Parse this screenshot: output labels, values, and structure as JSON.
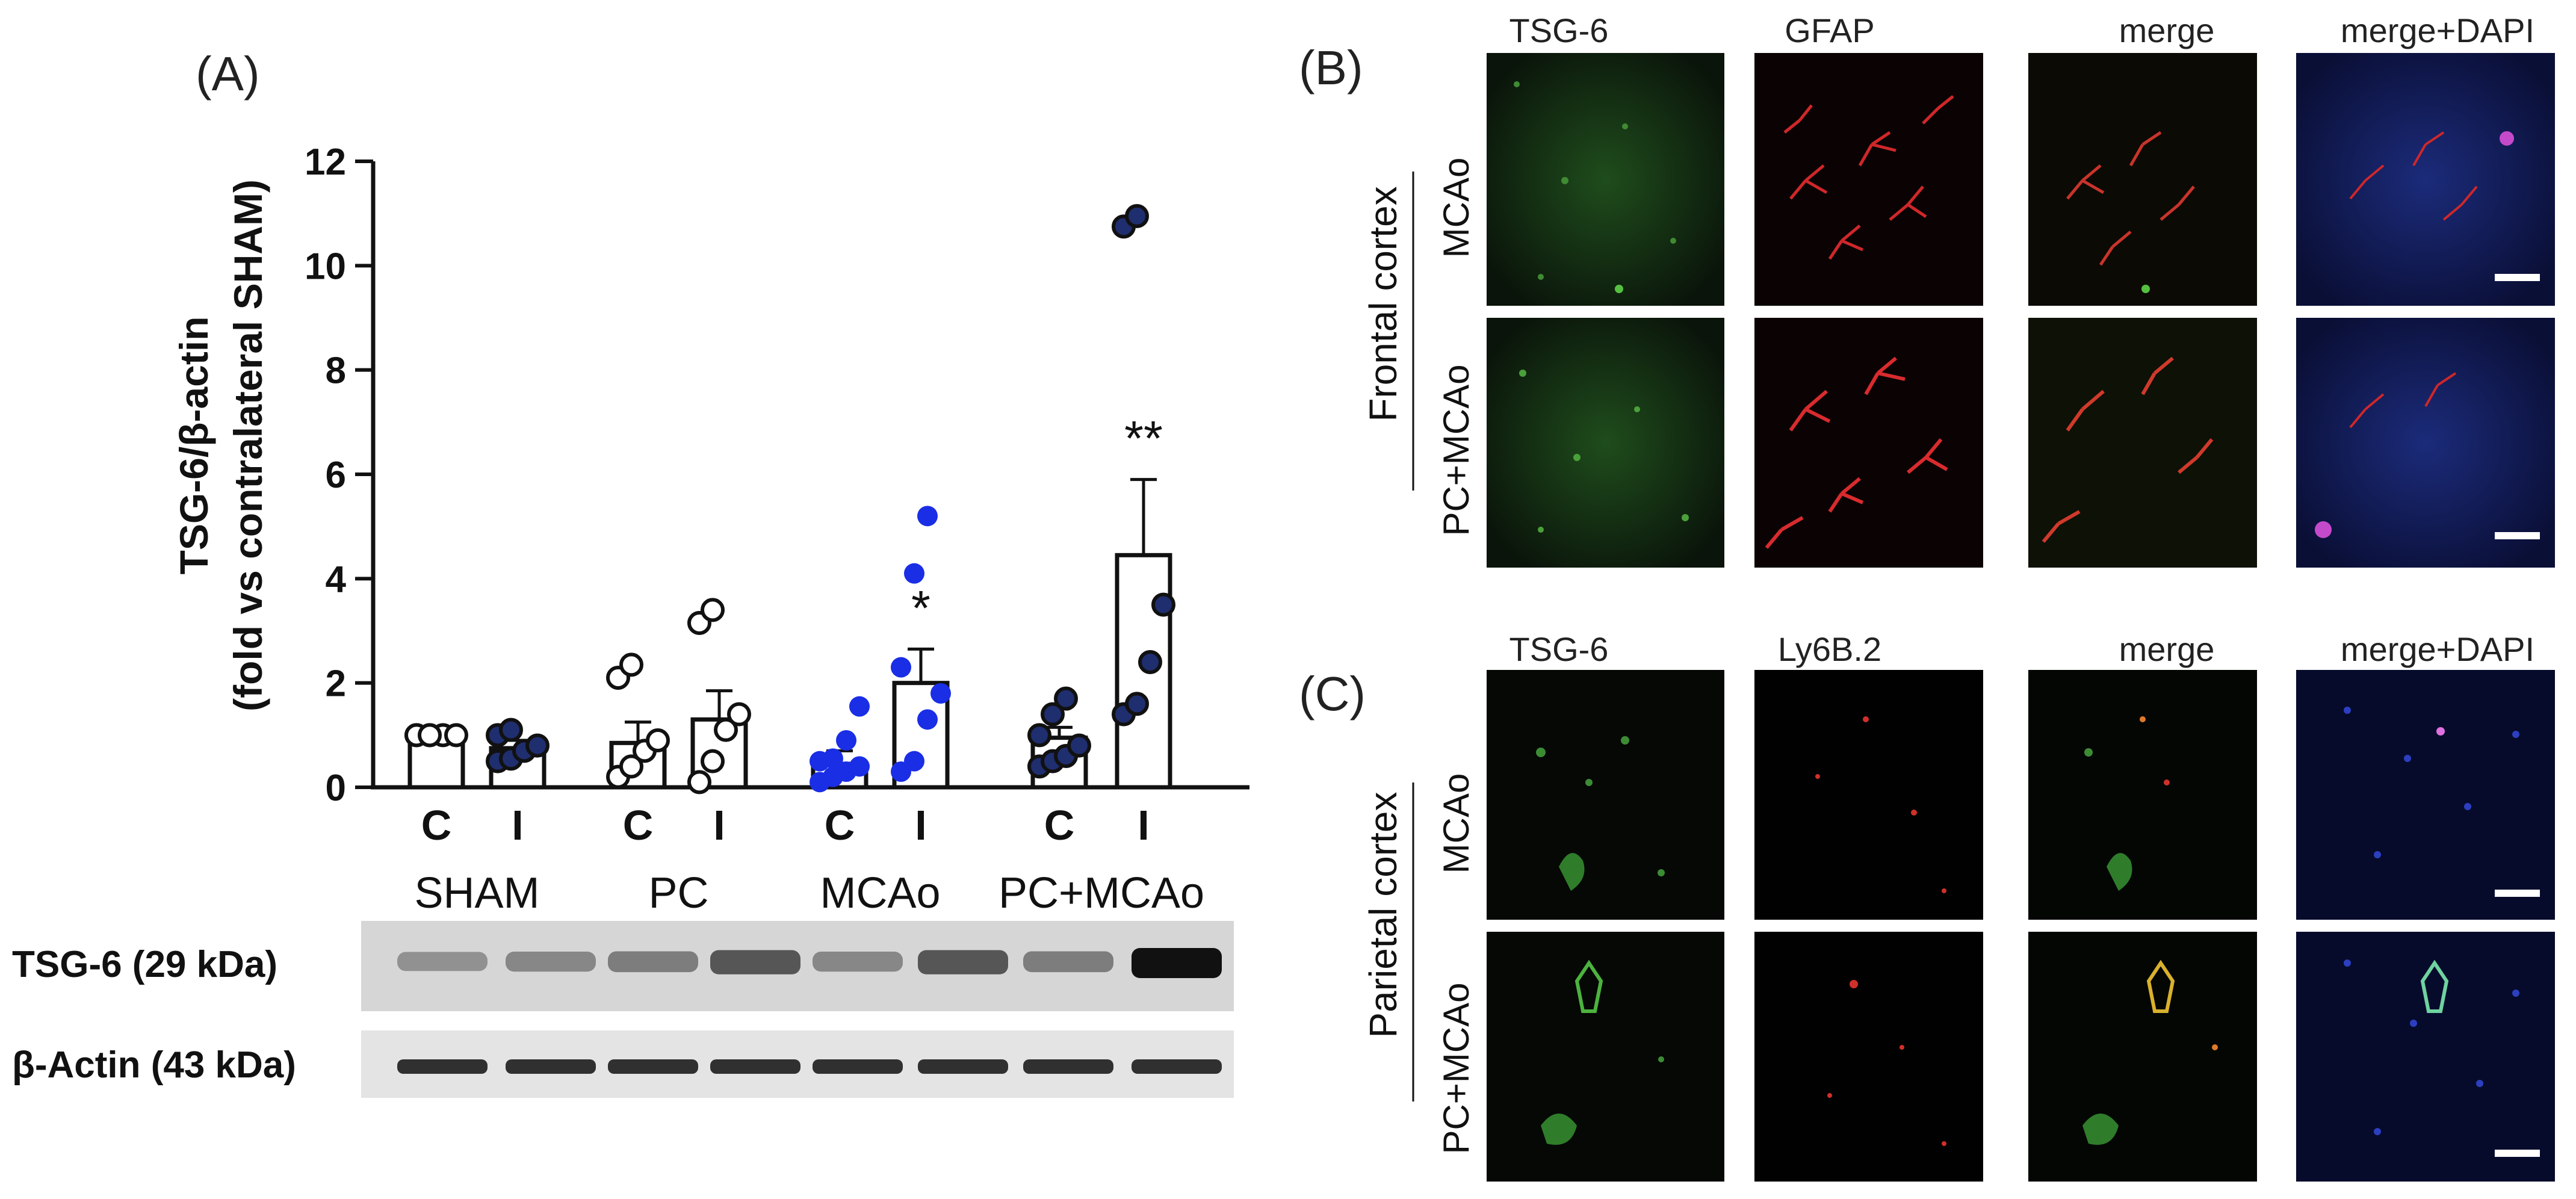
{
  "panels": {
    "a": "(A)",
    "b": "(B)",
    "c": "(C)"
  },
  "chart_data": {
    "type": "bar",
    "ylabel_line1": "TSG-6/β-actin",
    "ylabel_line2": "(fold vs contralateral SHAM)",
    "ylim": [
      0,
      12
    ],
    "yticks": [
      "0",
      "2",
      "4",
      "6",
      "8",
      "10",
      "12"
    ],
    "groups": [
      "SHAM",
      "PC",
      "MCAo",
      "PC+MCAo"
    ],
    "categories": [
      "C",
      "I",
      "C",
      "I",
      "C",
      "I",
      "C",
      "I"
    ],
    "values": [
      1.0,
      0.75,
      0.85,
      1.3,
      0.45,
      2.0,
      0.95,
      4.45
    ],
    "sem": [
      0.0,
      0.15,
      0.4,
      0.55,
      0.25,
      0.65,
      0.2,
      1.45
    ],
    "points": [
      [
        1.0,
        1.0,
        1.0,
        1.0,
        1.0,
        1.0
      ],
      [
        0.5,
        0.55,
        0.7,
        0.8,
        1.0,
        1.1
      ],
      [
        0.2,
        0.4,
        0.7,
        0.9,
        2.1,
        2.35
      ],
      [
        0.1,
        0.5,
        1.1,
        1.4,
        3.15,
        3.4
      ],
      [
        0.1,
        0.2,
        0.3,
        0.4,
        0.5,
        0.55,
        0.9,
        1.55
      ],
      [
        0.3,
        0.5,
        1.3,
        1.8,
        2.3,
        4.1,
        5.2
      ],
      [
        0.4,
        0.5,
        0.6,
        0.8,
        1.0,
        1.4,
        1.7
      ],
      [
        1.4,
        1.6,
        2.4,
        3.5,
        10.75,
        10.95
      ]
    ],
    "annotations": [
      "",
      "",
      "",
      "",
      "",
      "*",
      "",
      "**"
    ],
    "colors": {
      "white": "#ffffff",
      "blue": "#1a2ee6",
      "dark_navy": "#1f2e6e"
    }
  },
  "blot": {
    "rows": [
      {
        "label": "TSG-6 (29 kDa)"
      },
      {
        "label": "β-Actin (43 kDa)"
      }
    ]
  },
  "micro_b": {
    "columns": [
      "TSG-6",
      "GFAP",
      "merge",
      "merge+DAPI"
    ],
    "region": "Frontal cortex",
    "rows": [
      "MCAo",
      "PC+MCAo"
    ]
  },
  "micro_c": {
    "columns": [
      "TSG-6",
      "Ly6B.2",
      "merge",
      "merge+DAPI"
    ],
    "region": "Parietal cortex",
    "rows": [
      "MCAo",
      "PC+MCAo"
    ]
  }
}
